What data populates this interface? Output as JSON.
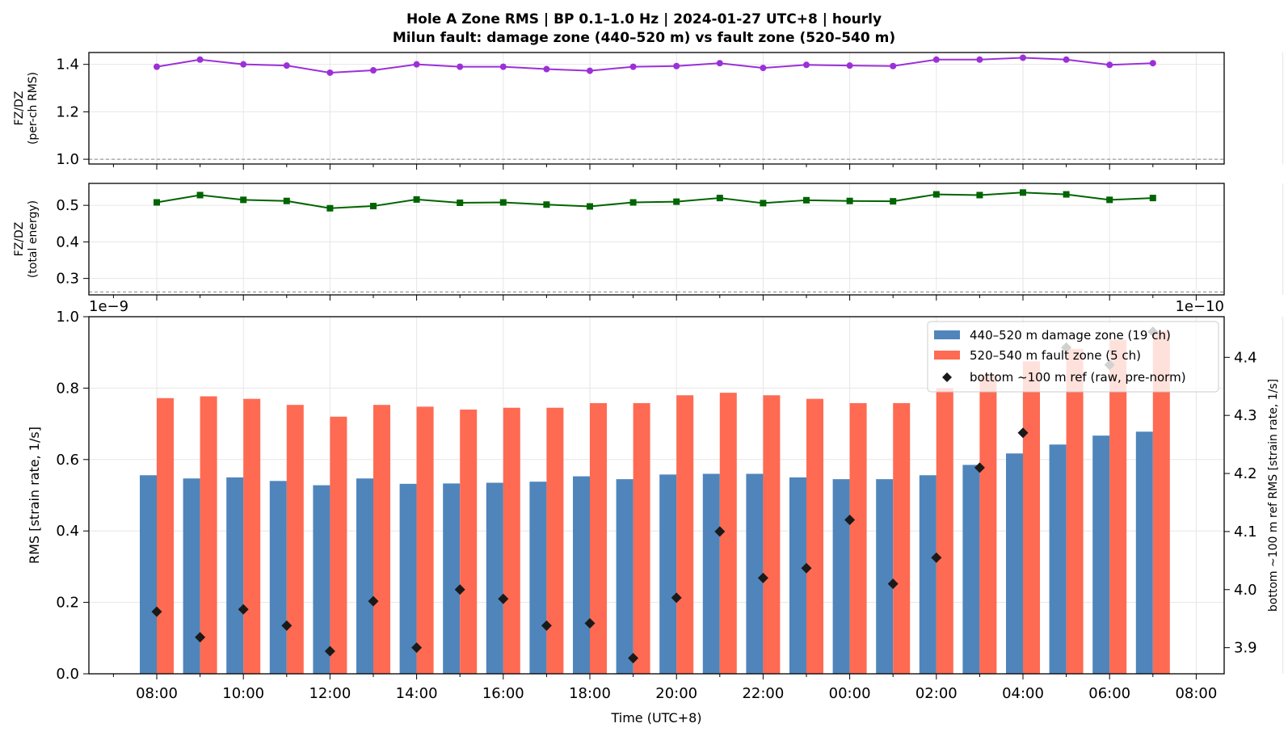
{
  "chart_data": [
    {
      "type": "line",
      "panel": "top",
      "ylabel": [
        "FZ/DZ",
        "(per-ch RMS)"
      ],
      "ylim": [
        0.98,
        1.45
      ],
      "yticks": [
        1.0,
        1.2,
        1.4
      ],
      "ytick_labels": [
        "1.0",
        "1.2",
        "1.4"
      ],
      "reference_line": 1.0,
      "color": "#9b30d9",
      "marker": "circle",
      "values": [
        1.39,
        1.42,
        1.4,
        1.395,
        1.365,
        1.375,
        1.4,
        1.39,
        1.39,
        1.38,
        1.373,
        1.39,
        1.393,
        1.405,
        1.385,
        1.398,
        1.395,
        1.393,
        1.42,
        1.42,
        1.428,
        1.42,
        1.398,
        1.405
      ]
    },
    {
      "type": "line",
      "panel": "middle",
      "ylabel": [
        "FZ/DZ",
        "(total energy)"
      ],
      "ylim": [
        0.255,
        0.56
      ],
      "yticks": [
        0.3,
        0.4,
        0.5
      ],
      "ytick_labels": [
        "0.3",
        "0.4",
        "0.5"
      ],
      "reference_line": 0.263,
      "color": "#006400",
      "marker": "square",
      "values": [
        0.508,
        0.528,
        0.515,
        0.512,
        0.492,
        0.498,
        0.516,
        0.507,
        0.508,
        0.502,
        0.497,
        0.508,
        0.51,
        0.52,
        0.506,
        0.514,
        0.512,
        0.511,
        0.53,
        0.528,
        0.535,
        0.53,
        0.515,
        0.52
      ]
    },
    {
      "type": "bar",
      "panel": "bottom",
      "xlabel": "Time (UTC+8)",
      "ylabel": "RMS  [strain rate, 1/s]",
      "ylim": [
        0,
        1.0
      ],
      "yticks": [
        0.0,
        0.2,
        0.4,
        0.6,
        0.8,
        1.0
      ],
      "ytick_labels": [
        "0.0",
        "0.2",
        "0.4",
        "0.6",
        "0.8",
        "1.0"
      ],
      "y_multiplier": "1e−9",
      "y2label": "bottom ~100 m ref RMS  [strain rate, 1/s]",
      "y2lim": [
        3.855,
        4.47
      ],
      "y2ticks": [
        3.9,
        4.0,
        4.1,
        4.2,
        4.3,
        4.4
      ],
      "y2tick_labels": [
        "3.9",
        "4.0",
        "4.1",
        "4.2",
        "4.3",
        "4.4"
      ],
      "y2_multiplier": "1e−10",
      "x_tick_labels": [
        "08:00",
        "10:00",
        "12:00",
        "14:00",
        "16:00",
        "18:00",
        "20:00",
        "22:00",
        "00:00",
        "02:00",
        "04:00",
        "06:00",
        "08:00"
      ],
      "hours": [
        "08:00",
        "09:00",
        "10:00",
        "11:00",
        "12:00",
        "13:00",
        "14:00",
        "15:00",
        "16:00",
        "17:00",
        "18:00",
        "19:00",
        "20:00",
        "21:00",
        "22:00",
        "23:00",
        "00:00",
        "01:00",
        "02:00",
        "03:00",
        "04:00",
        "05:00",
        "06:00",
        "07:00"
      ],
      "series": [
        {
          "name": "440–520 m  damage zone (19 ch)",
          "color": "#4f85bb",
          "values": [
            0.556,
            0.547,
            0.55,
            0.54,
            0.528,
            0.547,
            0.532,
            0.533,
            0.535,
            0.538,
            0.553,
            0.545,
            0.558,
            0.56,
            0.56,
            0.55,
            0.545,
            0.545,
            0.556,
            0.585,
            0.617,
            0.642,
            0.667,
            0.678
          ]
        },
        {
          "name": "520–540 m  fault zone (5 ch)",
          "color": "#ff6a53",
          "values": [
            0.772,
            0.777,
            0.77,
            0.753,
            0.72,
            0.753,
            0.748,
            0.74,
            0.745,
            0.745,
            0.758,
            0.758,
            0.78,
            0.787,
            0.78,
            0.77,
            0.758,
            0.758,
            0.8,
            0.835,
            0.875,
            0.91,
            0.935,
            0.96
          ]
        },
        {
          "name": "bottom ~100 m ref (raw, pre-norm)",
          "color": "#1a1a1a",
          "marker": "diamond",
          "axis": "right",
          "values": [
            3.962,
            3.918,
            3.966,
            3.938,
            3.894,
            3.98,
            3.9,
            4.0,
            3.984,
            3.938,
            3.942,
            3.882,
            3.986,
            4.1,
            4.02,
            4.037,
            4.12,
            4.01,
            4.055,
            4.21,
            4.27,
            4.417,
            4.387,
            4.444
          ]
        }
      ],
      "legend_loc": "upper-right"
    }
  ],
  "title": {
    "line1": "Hole A Zone RMS  |  BP 0.1–1.0 Hz  |  2024-01-27 UTC+8  |  hourly",
    "line2": "Milun fault: damage zone (440–520 m) vs fault zone (520–540 m)"
  }
}
